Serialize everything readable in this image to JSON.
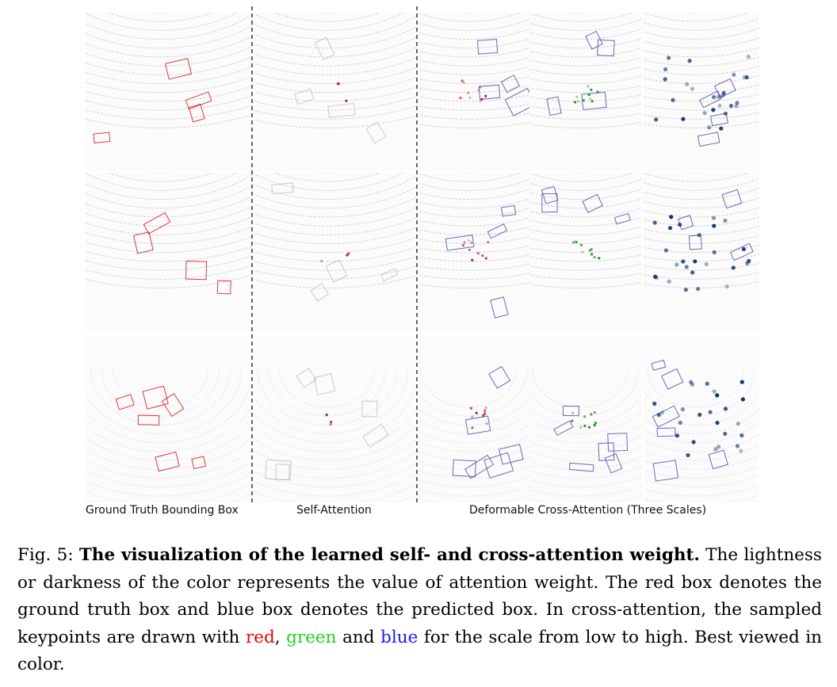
{
  "figure": {
    "column_labels": {
      "gt": "Ground Truth Bounding Box",
      "self": "Self-Attention",
      "cross": "Deformable Cross-Attention (Three Scales)"
    },
    "colors": {
      "gt_box": "#d62728",
      "pred_box": "#5a5ab4",
      "scale_low": "#b2182b",
      "scale_mid": "#1a8a1a",
      "scale_high": "#08306b",
      "lidar": "#b8b8b8"
    }
  },
  "caption": {
    "label": "Fig. 5:",
    "title": "The visualization of the learned self- and cross-attention weight.",
    "sentence1": "The lightness or darkness of the color represents the value of attention weight.",
    "sentence2": "The red box denotes the ground truth box and blue box denotes the predicted box.",
    "sentence3_pre": "In cross-attention, the sampled keypoints are drawn with",
    "red_word": "red",
    "sep1": ",",
    "green_word": "green",
    "and_word": "and",
    "blue_word": "blue",
    "sentence3_post": "for the scale from low to high. Best viewed in color."
  }
}
